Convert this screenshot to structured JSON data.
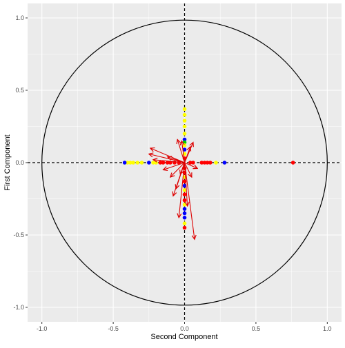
{
  "chart_data": {
    "type": "scatter",
    "title": "",
    "xlabel": "Second Component",
    "ylabel": "First Component",
    "xlim": [
      -1.1,
      1.1
    ],
    "ylim": [
      -1.1,
      1.1
    ],
    "x_ticks": [
      -1.0,
      -0.5,
      0.0,
      0.5,
      1.0
    ],
    "y_ticks": [
      -1.0,
      -0.5,
      0.0,
      0.5,
      1.0
    ],
    "x_tick_labels": [
      "-1.0",
      "-0.5",
      "0.0",
      "0.5",
      "1.0"
    ],
    "y_tick_labels": [
      "-1.0",
      "-0.5",
      "0.0",
      "0.5",
      "1.0"
    ],
    "grid": true,
    "background": "#ebebeb",
    "grid_color": "#ffffff",
    "unit_circle": {
      "radius": 1.0,
      "color": "#000000"
    },
    "reference_lines": [
      {
        "orientation": "vertical",
        "value": 0,
        "style": "dashed",
        "color": "#000000"
      },
      {
        "orientation": "horizontal",
        "value": 0,
        "style": "dashed",
        "color": "#000000"
      }
    ],
    "point_colors": {
      "red": "#ff0000",
      "blue": "#0000ff",
      "yellow": "#ffff00",
      "green": "#00cc00",
      "black": "#000000"
    },
    "points": [
      {
        "x": 0.76,
        "y": 0.0,
        "color": "red"
      },
      {
        "x": 0.28,
        "y": 0.0,
        "color": "blue"
      },
      {
        "x": 0.22,
        "y": 0.0,
        "color": "yellow"
      },
      {
        "x": 0.18,
        "y": 0.0,
        "color": "red"
      },
      {
        "x": 0.16,
        "y": 0.0,
        "color": "red"
      },
      {
        "x": 0.14,
        "y": 0.0,
        "color": "red"
      },
      {
        "x": 0.12,
        "y": 0.0,
        "color": "red"
      },
      {
        "x": 0.06,
        "y": 0.0,
        "color": "red"
      },
      {
        "x": 0.04,
        "y": 0.0,
        "color": "red"
      },
      {
        "x": -0.04,
        "y": 0.0,
        "color": "red"
      },
      {
        "x": -0.07,
        "y": 0.0,
        "color": "red"
      },
      {
        "x": -0.1,
        "y": 0.0,
        "color": "red"
      },
      {
        "x": -0.12,
        "y": 0.0,
        "color": "red"
      },
      {
        "x": -0.15,
        "y": 0.0,
        "color": "red"
      },
      {
        "x": -0.17,
        "y": 0.0,
        "color": "red"
      },
      {
        "x": -0.2,
        "y": 0.0,
        "color": "yellow"
      },
      {
        "x": -0.22,
        "y": 0.0,
        "color": "yellow"
      },
      {
        "x": -0.25,
        "y": 0.0,
        "color": "blue"
      },
      {
        "x": -0.3,
        "y": 0.0,
        "color": "yellow"
      },
      {
        "x": -0.33,
        "y": 0.0,
        "color": "yellow"
      },
      {
        "x": -0.36,
        "y": 0.0,
        "color": "yellow"
      },
      {
        "x": -0.38,
        "y": 0.0,
        "color": "yellow"
      },
      {
        "x": -0.4,
        "y": 0.0,
        "color": "yellow"
      },
      {
        "x": -0.42,
        "y": 0.0,
        "color": "blue"
      },
      {
        "x": 0.0,
        "y": 0.37,
        "color": "yellow"
      },
      {
        "x": 0.0,
        "y": 0.33,
        "color": "yellow"
      },
      {
        "x": 0.0,
        "y": 0.29,
        "color": "yellow"
      },
      {
        "x": 0.0,
        "y": 0.25,
        "color": "yellow"
      },
      {
        "x": 0.0,
        "y": 0.2,
        "color": "yellow"
      },
      {
        "x": 0.0,
        "y": 0.16,
        "color": "blue"
      },
      {
        "x": 0.0,
        "y": 0.14,
        "color": "green"
      },
      {
        "x": 0.0,
        "y": 0.12,
        "color": "yellow"
      },
      {
        "x": 0.0,
        "y": 0.09,
        "color": "blue"
      },
      {
        "x": 0.0,
        "y": 0.06,
        "color": "yellow"
      },
      {
        "x": 0.0,
        "y": 0.03,
        "color": "red"
      },
      {
        "x": 0.0,
        "y": -0.04,
        "color": "red"
      },
      {
        "x": 0.0,
        "y": -0.07,
        "color": "red"
      },
      {
        "x": 0.0,
        "y": -0.1,
        "color": "yellow"
      },
      {
        "x": 0.0,
        "y": -0.13,
        "color": "red"
      },
      {
        "x": 0.0,
        "y": -0.16,
        "color": "blue"
      },
      {
        "x": 0.0,
        "y": -0.19,
        "color": "yellow"
      },
      {
        "x": 0.0,
        "y": -0.22,
        "color": "red"
      },
      {
        "x": 0.0,
        "y": -0.26,
        "color": "red"
      },
      {
        "x": 0.0,
        "y": -0.29,
        "color": "yellow"
      },
      {
        "x": 0.0,
        "y": -0.32,
        "color": "blue"
      },
      {
        "x": 0.0,
        "y": -0.35,
        "color": "blue"
      },
      {
        "x": 0.0,
        "y": -0.38,
        "color": "blue"
      },
      {
        "x": 0.0,
        "y": -0.42,
        "color": "yellow"
      },
      {
        "x": 0.0,
        "y": -0.45,
        "color": "red"
      }
    ],
    "arrow_color": "#dd0000",
    "arrows": [
      {
        "x": -0.24,
        "y": 0.1
      },
      {
        "x": -0.25,
        "y": 0.06
      },
      {
        "x": -0.22,
        "y": 0.02
      },
      {
        "x": -0.15,
        "y": -0.05
      },
      {
        "x": -0.1,
        "y": -0.1
      },
      {
        "x": -0.06,
        "y": -0.18
      },
      {
        "x": -0.04,
        "y": -0.38
      },
      {
        "x": 0.07,
        "y": -0.53
      },
      {
        "x": 0.06,
        "y": 0.14
      },
      {
        "x": -0.02,
        "y": 0.15
      },
      {
        "x": 0.04,
        "y": 0.11
      },
      {
        "x": -0.05,
        "y": 0.16
      },
      {
        "x": 0.09,
        "y": -0.04
      },
      {
        "x": -0.08,
        "y": -0.23
      },
      {
        "x": 0.05,
        "y": -0.1
      },
      {
        "x": -0.03,
        "y": -0.08
      },
      {
        "x": 0.02,
        "y": -0.3
      },
      {
        "x": -0.12,
        "y": 0.04
      }
    ]
  }
}
